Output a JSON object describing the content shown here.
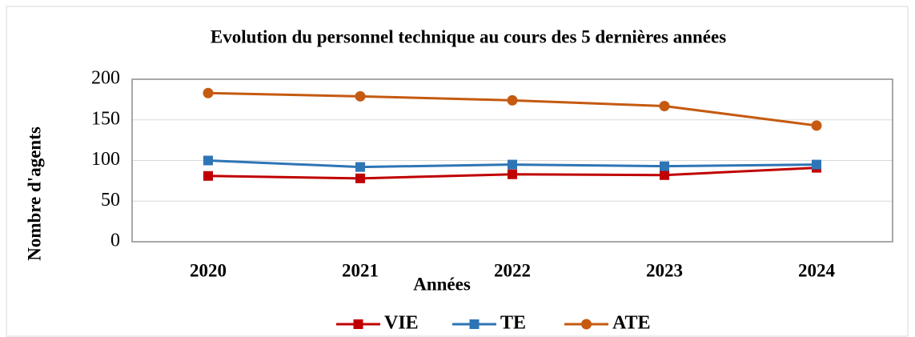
{
  "chart_data": {
    "type": "line",
    "title": "Evolution du personnel technique au cours des 5 dernières années",
    "x_label": "Années",
    "y_label": "Nombre d'agents",
    "categories": [
      "2020",
      "2021",
      "2022",
      "2023",
      "2024"
    ],
    "series": [
      {
        "name": "VIE",
        "color": "#c00000",
        "marker": "square",
        "values": [
          81,
          78,
          83,
          82,
          91
        ]
      },
      {
        "name": "TE",
        "color": "#2e75b6",
        "marker": "square",
        "values": [
          100,
          92,
          95,
          93,
          95
        ]
      },
      {
        "name": "ATE",
        "color": "#c55a11",
        "marker": "circle",
        "values": [
          183,
          179,
          174,
          167,
          143
        ]
      }
    ],
    "ylim": [
      0,
      200
    ],
    "yticks": [
      0,
      50,
      100,
      150,
      200
    ],
    "grid": true,
    "legend": "bottom"
  }
}
